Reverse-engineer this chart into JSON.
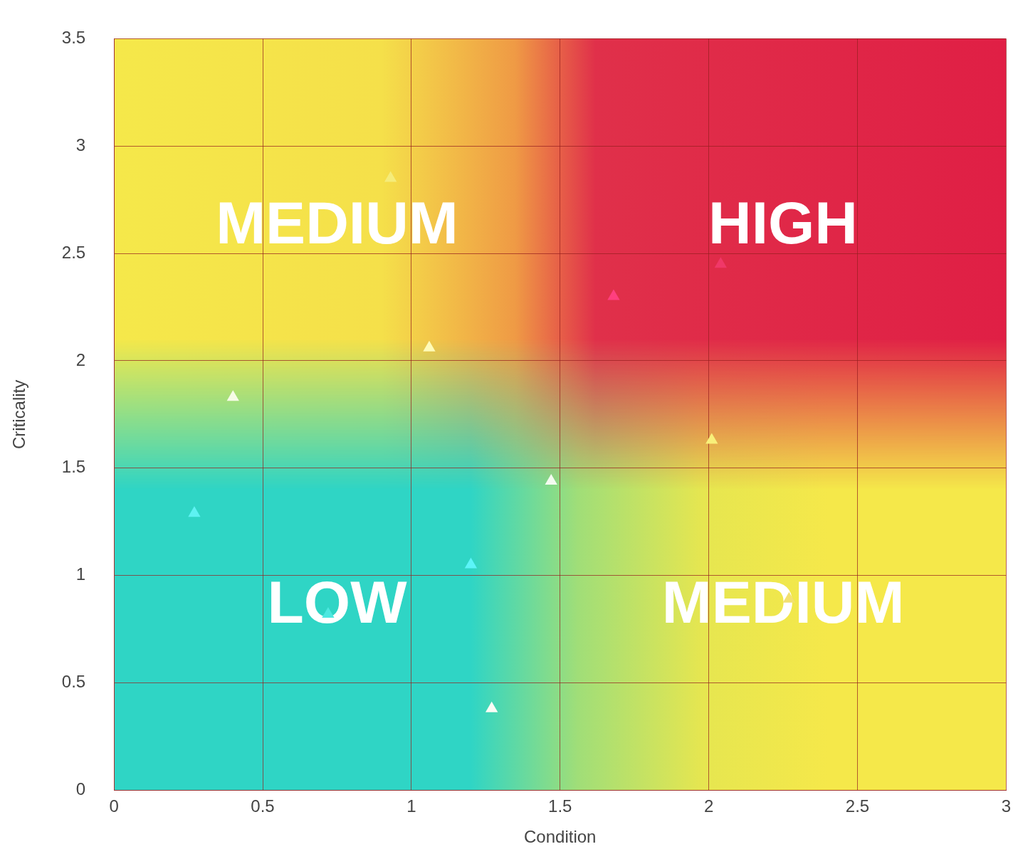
{
  "chart_data": {
    "type": "scatter",
    "xlabel": "Condition",
    "ylabel": "Criticality",
    "x": [
      0.93,
      1.06,
      0.4,
      0.27,
      1.2,
      0.72,
      1.27,
      1.47,
      1.68,
      2.04,
      2.01,
      2.27
    ],
    "values": [
      2.85,
      2.06,
      1.83,
      1.29,
      1.05,
      0.82,
      0.38,
      1.44,
      2.3,
      2.45,
      1.63,
      0.89
    ],
    "colors": [
      "#f5ec7a",
      "#fffbb8",
      "#f6fbe6",
      "#5ef2f2",
      "#5cf4f8",
      "#4ee8e0",
      "#fbfdf6",
      "#f4fbf0",
      "#ff3f7f",
      "#f03868",
      "#f8f07a",
      "#f2e070"
    ],
    "xlim": [
      0,
      3
    ],
    "xticks": [
      0,
      0.5,
      1,
      1.5,
      2,
      2.5,
      3
    ],
    "ylim": [
      0,
      3.5
    ],
    "yticks": [
      0,
      0.5,
      1,
      1.5,
      2,
      2.5,
      3,
      3.5
    ],
    "grid": true,
    "marker": "triangle",
    "annotations": [
      "MEDIUM",
      "HIGH",
      "LOW",
      "MEDIUM"
    ]
  }
}
